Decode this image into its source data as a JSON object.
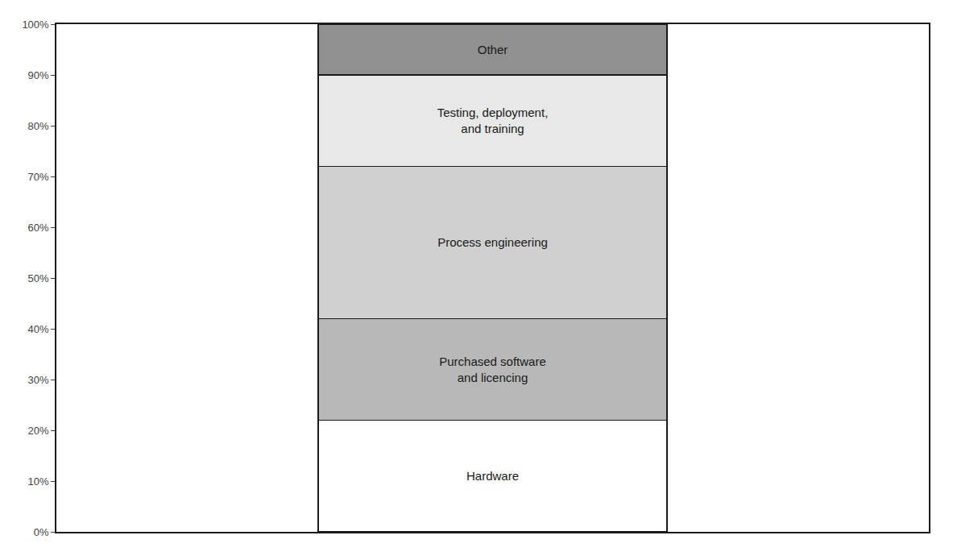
{
  "chart_data": {
    "type": "bar",
    "stacked": true,
    "grid": false,
    "tick_labels": "y",
    "categories": [
      null
    ],
    "series": [
      {
        "name": "Hardware",
        "color": "#ffffff",
        "values": [
          22
        ]
      },
      {
        "name": "Purchased software\nand licencing",
        "color": "#b8b8b8",
        "values": [
          20
        ]
      },
      {
        "name": "Process engineering",
        "color": "#d0d0d0",
        "values": [
          30
        ]
      },
      {
        "name": "Testing, deployment,\nand training",
        "color": "#e8e8e8",
        "values": [
          18
        ]
      },
      {
        "name": "Other",
        "color": "#909090",
        "values": [
          10
        ]
      }
    ],
    "ylim": [
      0,
      100
    ],
    "yticks": [
      {
        "value": 0,
        "label": "0%"
      },
      {
        "value": 10,
        "label": "10%"
      },
      {
        "value": 20,
        "label": "20%"
      },
      {
        "value": 30,
        "label": "30%"
      },
      {
        "value": 40,
        "label": "40%"
      },
      {
        "value": 50,
        "label": "50%"
      },
      {
        "value": 60,
        "label": "60%"
      },
      {
        "value": 70,
        "label": "70%"
      },
      {
        "value": 80,
        "label": "80%"
      },
      {
        "value": 90,
        "label": "90%"
      },
      {
        "value": 100,
        "label": "100%"
      }
    ]
  }
}
